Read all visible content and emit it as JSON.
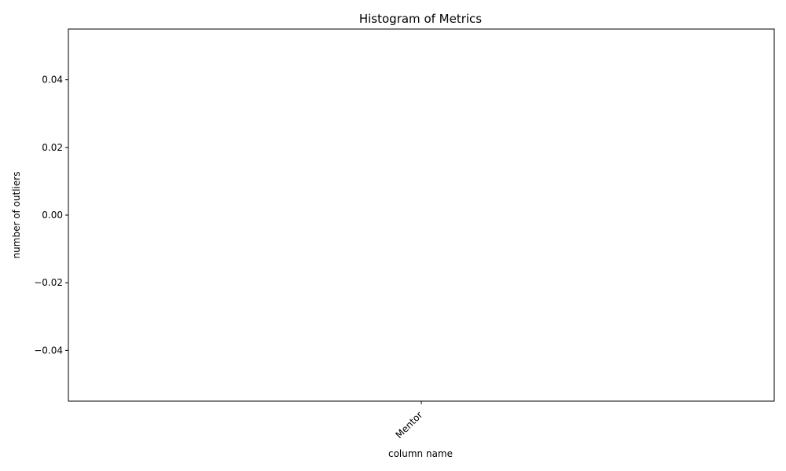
{
  "chart_data": {
    "type": "bar",
    "title": "Histogram of Metrics",
    "xlabel": "column name",
    "ylabel": "number of outliers",
    "categories": [
      "Mentor"
    ],
    "values": [
      0
    ],
    "ylim": [
      -0.055,
      0.055
    ],
    "yticks": [
      -0.04,
      -0.02,
      0.0,
      0.02,
      0.04
    ],
    "ytick_labels": [
      "−0.04",
      "−0.02",
      "0.00",
      "0.02",
      "0.04"
    ],
    "xtick_rotation_deg": 45,
    "grid": false,
    "legend": "none"
  }
}
